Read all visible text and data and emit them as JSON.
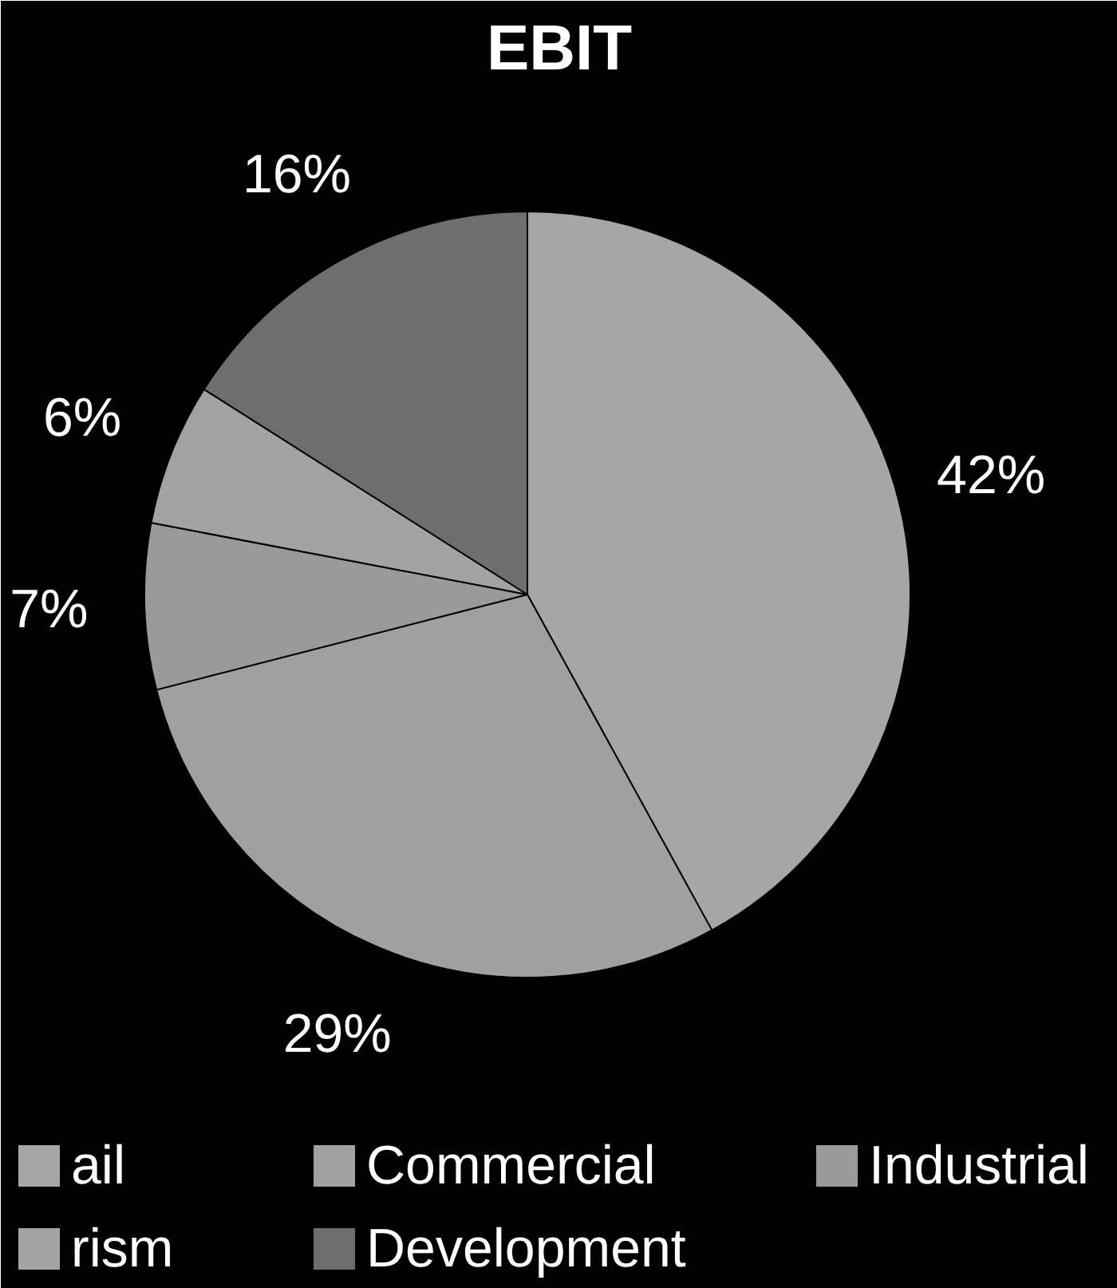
{
  "chart_data": {
    "type": "pie",
    "title": "EBIT",
    "categories": [
      "ail",
      "Commercial",
      "Industrial",
      "rism",
      "Development"
    ],
    "values": [
      42,
      29,
      7,
      6,
      16
    ],
    "colors": [
      "#a6a6a6",
      "#a0a0a0",
      "#9a9a9a",
      "#a3a3a3",
      "#6e6e6e"
    ],
    "value_labels": [
      "42%",
      "29%",
      "7%",
      "6%",
      "16%"
    ],
    "legend": "bottom"
  }
}
